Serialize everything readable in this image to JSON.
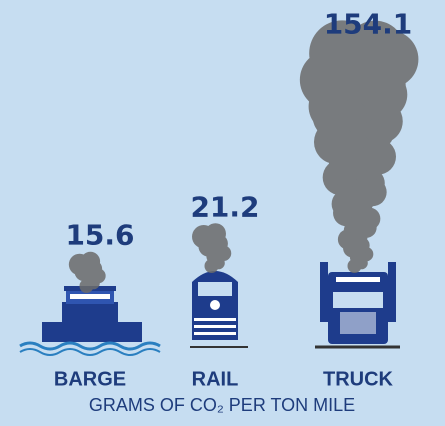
{
  "chart_data": {
    "type": "bar",
    "title": "GRAMS OF CO₂ PER TON MILE",
    "categories": [
      "BARGE",
      "RAIL",
      "TRUCK"
    ],
    "values": [
      15.6,
      21.2,
      154.1
    ],
    "color": "#6b6b6b"
  }
}
